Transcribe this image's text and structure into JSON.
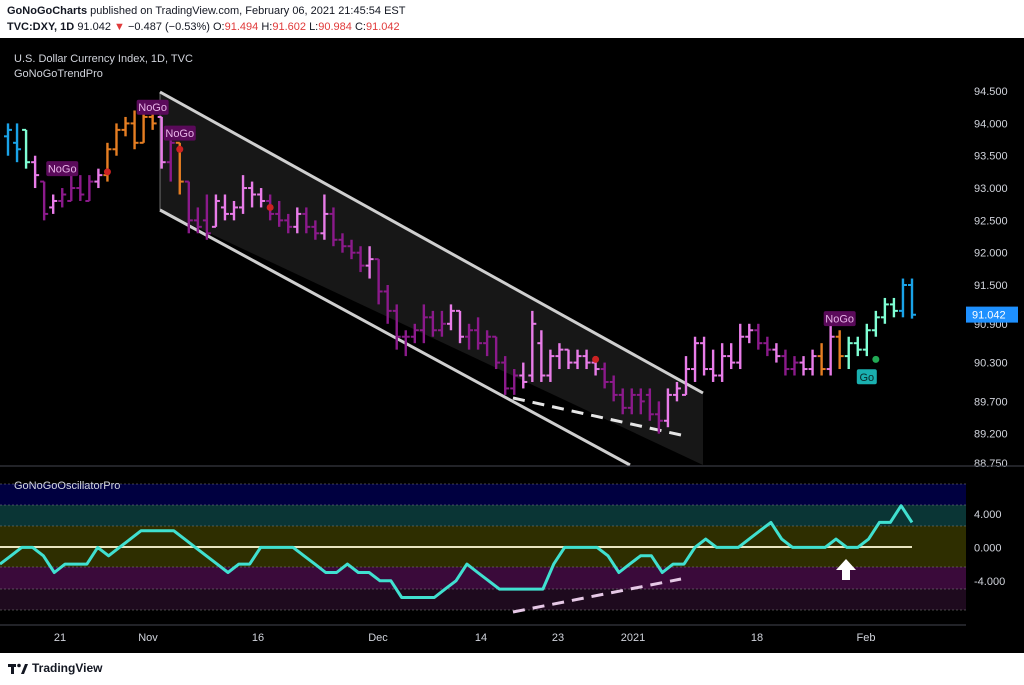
{
  "header": {
    "author": "GoNoGoCharts",
    "published_text": "published on TradingView.com, February 06, 2021 21:45:54 EST",
    "symbol": "TVC:DXY, 1D",
    "last": "91.042",
    "change_arrow": "▼",
    "change": "−0.487 (−0.53%)",
    "o_label": "O:",
    "o_value": "91.494",
    "h_label": "H:",
    "h_value": "91.602",
    "l_label": "L:",
    "l_value": "90.984",
    "c_label": "C:",
    "c_value": "91.042"
  },
  "footer": {
    "logo_text": "TradingView"
  },
  "colors": {
    "background": "#000000",
    "nogo_strong": "#8b1a8b",
    "nogo_weak": "#e87ce8",
    "neutral": "#e67e22",
    "go_weak": "#7fffd4",
    "go_strong": "#1aa3e8",
    "oscillator": "#40e0d0",
    "price_label_bg": "#1e90ff",
    "label_nogo_bg": "#5a0a5a",
    "label_go_bg": "#1ab0b0"
  },
  "chart_data": [
    {
      "type": "ohlc",
      "title": "U.S. Dollar Currency Index, 1D, TVC",
      "indicator": "GoNoGoTrendPro",
      "y_ticks": [
        "94.500",
        "94.000",
        "93.500",
        "93.000",
        "92.500",
        "92.000",
        "91.500",
        "90.900",
        "90.300",
        "89.700",
        "89.200",
        "88.750"
      ],
      "ylim": [
        88.7,
        94.95
      ],
      "x_ticks": [
        "21",
        "Nov",
        "16",
        "Dec",
        "14",
        "23",
        "2021",
        "18",
        "Feb"
      ],
      "last_price_label": "91.042",
      "bars": [
        {
          "o": 93.8,
          "h": 94.0,
          "l": 93.5,
          "c": 93.9,
          "color": "go_strong"
        },
        {
          "o": 93.7,
          "h": 94.0,
          "l": 93.4,
          "c": 93.6,
          "color": "go_strong"
        },
        {
          "o": 93.9,
          "h": 93.9,
          "l": 93.3,
          "c": 93.4,
          "color": "go_weak"
        },
        {
          "o": 93.4,
          "h": 93.5,
          "l": 93.0,
          "c": 93.2,
          "color": "nogo_weak"
        },
        {
          "o": 93.1,
          "h": 93.1,
          "l": 92.5,
          "c": 92.6,
          "color": "nogo_strong"
        },
        {
          "o": 92.7,
          "h": 92.9,
          "l": 92.6,
          "c": 92.8,
          "color": "nogo_weak"
        },
        {
          "o": 92.8,
          "h": 93.0,
          "l": 92.7,
          "c": 92.9,
          "color": "nogo_strong"
        },
        {
          "o": 92.8,
          "h": 93.2,
          "l": 92.8,
          "c": 93.0,
          "color": "nogo_strong"
        },
        {
          "o": 93.0,
          "h": 93.2,
          "l": 92.8,
          "c": 92.9,
          "color": "nogo_strong"
        },
        {
          "o": 92.8,
          "h": 93.2,
          "l": 92.8,
          "c": 93.1,
          "color": "nogo_strong"
        },
        {
          "o": 93.1,
          "h": 93.3,
          "l": 93.0,
          "c": 93.2,
          "color": "nogo_weak"
        },
        {
          "o": 93.2,
          "h": 93.7,
          "l": 93.1,
          "c": 93.6,
          "color": "neutral"
        },
        {
          "o": 93.6,
          "h": 94.0,
          "l": 93.5,
          "c": 93.9,
          "color": "neutral"
        },
        {
          "o": 93.9,
          "h": 94.1,
          "l": 93.8,
          "c": 94.0,
          "color": "neutral"
        },
        {
          "o": 94.0,
          "h": 94.2,
          "l": 93.6,
          "c": 93.7,
          "color": "neutral"
        },
        {
          "o": 93.7,
          "h": 94.3,
          "l": 93.7,
          "c": 94.1,
          "color": "neutral"
        },
        {
          "o": 94.1,
          "h": 94.3,
          "l": 93.9,
          "c": 94.0,
          "color": "neutral"
        },
        {
          "o": 94.1,
          "h": 94.1,
          "l": 93.3,
          "c": 93.4,
          "color": "nogo_weak"
        },
        {
          "o": 93.4,
          "h": 93.8,
          "l": 93.1,
          "c": 93.7,
          "color": "nogo_strong"
        },
        {
          "o": 93.7,
          "h": 93.7,
          "l": 92.9,
          "c": 93.1,
          "color": "neutral"
        },
        {
          "o": 93.1,
          "h": 93.1,
          "l": 92.3,
          "c": 92.5,
          "color": "nogo_strong"
        },
        {
          "o": 92.5,
          "h": 92.7,
          "l": 92.3,
          "c": 92.4,
          "color": "nogo_strong"
        },
        {
          "o": 92.5,
          "h": 92.9,
          "l": 92.2,
          "c": 92.3,
          "color": "nogo_strong"
        },
        {
          "o": 92.4,
          "h": 92.9,
          "l": 92.4,
          "c": 92.8,
          "color": "nogo_weak"
        },
        {
          "o": 92.7,
          "h": 92.9,
          "l": 92.5,
          "c": 92.6,
          "color": "nogo_weak"
        },
        {
          "o": 92.6,
          "h": 92.8,
          "l": 92.5,
          "c": 92.7,
          "color": "nogo_weak"
        },
        {
          "o": 92.7,
          "h": 93.2,
          "l": 92.6,
          "c": 93.0,
          "color": "nogo_weak"
        },
        {
          "o": 93.0,
          "h": 93.1,
          "l": 92.7,
          "c": 92.9,
          "color": "nogo_weak"
        },
        {
          "o": 92.9,
          "h": 93.0,
          "l": 92.7,
          "c": 92.8,
          "color": "nogo_weak"
        },
        {
          "o": 92.8,
          "h": 92.9,
          "l": 92.5,
          "c": 92.6,
          "color": "nogo_strong"
        },
        {
          "o": 92.6,
          "h": 92.8,
          "l": 92.4,
          "c": 92.5,
          "color": "nogo_strong"
        },
        {
          "o": 92.5,
          "h": 92.6,
          "l": 92.3,
          "c": 92.4,
          "color": "nogo_strong"
        },
        {
          "o": 92.4,
          "h": 92.7,
          "l": 92.3,
          "c": 92.6,
          "color": "nogo_weak"
        },
        {
          "o": 92.6,
          "h": 92.7,
          "l": 92.3,
          "c": 92.4,
          "color": "nogo_strong"
        },
        {
          "o": 92.4,
          "h": 92.5,
          "l": 92.2,
          "c": 92.3,
          "color": "nogo_strong"
        },
        {
          "o": 92.3,
          "h": 92.9,
          "l": 92.2,
          "c": 92.6,
          "color": "nogo_weak"
        },
        {
          "o": 92.6,
          "h": 92.7,
          "l": 92.1,
          "c": 92.2,
          "color": "nogo_strong"
        },
        {
          "o": 92.2,
          "h": 92.3,
          "l": 92.0,
          "c": 92.1,
          "color": "nogo_strong"
        },
        {
          "o": 92.1,
          "h": 92.2,
          "l": 91.9,
          "c": 92.0,
          "color": "nogo_strong"
        },
        {
          "o": 92.0,
          "h": 92.1,
          "l": 91.7,
          "c": 91.8,
          "color": "nogo_strong"
        },
        {
          "o": 91.8,
          "h": 92.1,
          "l": 91.6,
          "c": 91.9,
          "color": "nogo_weak"
        },
        {
          "o": 91.9,
          "h": 91.9,
          "l": 91.2,
          "c": 91.4,
          "color": "nogo_strong"
        },
        {
          "o": 91.4,
          "h": 91.5,
          "l": 90.9,
          "c": 91.1,
          "color": "nogo_strong"
        },
        {
          "o": 91.1,
          "h": 91.2,
          "l": 90.5,
          "c": 90.7,
          "color": "nogo_strong"
        },
        {
          "o": 90.7,
          "h": 90.8,
          "l": 90.4,
          "c": 90.7,
          "color": "nogo_strong"
        },
        {
          "o": 90.7,
          "h": 90.9,
          "l": 90.6,
          "c": 90.8,
          "color": "nogo_strong"
        },
        {
          "o": 90.8,
          "h": 91.2,
          "l": 90.6,
          "c": 91.0,
          "color": "nogo_strong"
        },
        {
          "o": 91.0,
          "h": 91.1,
          "l": 90.7,
          "c": 90.8,
          "color": "nogo_strong"
        },
        {
          "o": 90.8,
          "h": 91.1,
          "l": 90.7,
          "c": 90.9,
          "color": "nogo_strong"
        },
        {
          "o": 90.9,
          "h": 91.2,
          "l": 90.8,
          "c": 91.1,
          "color": "nogo_weak"
        },
        {
          "o": 91.1,
          "h": 91.1,
          "l": 90.6,
          "c": 90.7,
          "color": "nogo_weak"
        },
        {
          "o": 90.7,
          "h": 90.9,
          "l": 90.5,
          "c": 90.8,
          "color": "nogo_strong"
        },
        {
          "o": 90.8,
          "h": 91.0,
          "l": 90.5,
          "c": 90.6,
          "color": "nogo_strong"
        },
        {
          "o": 90.6,
          "h": 90.8,
          "l": 90.4,
          "c": 90.7,
          "color": "nogo_strong"
        },
        {
          "o": 90.7,
          "h": 90.7,
          "l": 90.2,
          "c": 90.3,
          "color": "nogo_strong"
        },
        {
          "o": 90.3,
          "h": 90.4,
          "l": 89.8,
          "c": 89.9,
          "color": "nogo_strong"
        },
        {
          "o": 89.9,
          "h": 90.2,
          "l": 89.8,
          "c": 90.1,
          "color": "nogo_strong"
        },
        {
          "o": 90.1,
          "h": 90.3,
          "l": 89.9,
          "c": 90.0,
          "color": "nogo_weak"
        },
        {
          "o": 90.1,
          "h": 91.1,
          "l": 90.0,
          "c": 90.9,
          "color": "nogo_weak"
        },
        {
          "o": 90.6,
          "h": 90.8,
          "l": 90.0,
          "c": 90.1,
          "color": "nogo_weak"
        },
        {
          "o": 90.1,
          "h": 90.5,
          "l": 90.0,
          "c": 90.4,
          "color": "nogo_weak"
        },
        {
          "o": 90.4,
          "h": 90.6,
          "l": 90.2,
          "c": 90.5,
          "color": "nogo_weak"
        },
        {
          "o": 90.5,
          "h": 90.5,
          "l": 90.2,
          "c": 90.3,
          "color": "nogo_weak"
        },
        {
          "o": 90.3,
          "h": 90.5,
          "l": 90.2,
          "c": 90.4,
          "color": "nogo_weak"
        },
        {
          "o": 90.4,
          "h": 90.5,
          "l": 90.2,
          "c": 90.3,
          "color": "nogo_weak"
        },
        {
          "o": 90.3,
          "h": 90.4,
          "l": 90.1,
          "c": 90.2,
          "color": "nogo_weak"
        },
        {
          "o": 90.2,
          "h": 90.3,
          "l": 89.9,
          "c": 90.0,
          "color": "nogo_strong"
        },
        {
          "o": 90.0,
          "h": 90.1,
          "l": 89.7,
          "c": 89.8,
          "color": "nogo_strong"
        },
        {
          "o": 89.8,
          "h": 89.9,
          "l": 89.5,
          "c": 89.6,
          "color": "nogo_strong"
        },
        {
          "o": 89.6,
          "h": 89.9,
          "l": 89.5,
          "c": 89.8,
          "color": "nogo_strong"
        },
        {
          "o": 89.8,
          "h": 89.9,
          "l": 89.5,
          "c": 89.7,
          "color": "nogo_strong"
        },
        {
          "o": 89.8,
          "h": 89.9,
          "l": 89.4,
          "c": 89.5,
          "color": "nogo_strong"
        },
        {
          "o": 89.5,
          "h": 89.7,
          "l": 89.2,
          "c": 89.4,
          "color": "nogo_strong"
        },
        {
          "o": 89.4,
          "h": 89.9,
          "l": 89.3,
          "c": 89.8,
          "color": "nogo_weak"
        },
        {
          "o": 89.8,
          "h": 90.0,
          "l": 89.7,
          "c": 89.9,
          "color": "nogo_weak"
        },
        {
          "o": 89.8,
          "h": 90.4,
          "l": 89.8,
          "c": 90.2,
          "color": "nogo_weak"
        },
        {
          "o": 90.2,
          "h": 90.7,
          "l": 90.0,
          "c": 90.6,
          "color": "nogo_weak"
        },
        {
          "o": 90.6,
          "h": 90.7,
          "l": 90.1,
          "c": 90.2,
          "color": "nogo_weak"
        },
        {
          "o": 90.2,
          "h": 90.5,
          "l": 90.0,
          "c": 90.1,
          "color": "nogo_weak"
        },
        {
          "o": 90.1,
          "h": 90.6,
          "l": 90.0,
          "c": 90.4,
          "color": "nogo_weak"
        },
        {
          "o": 90.4,
          "h": 90.6,
          "l": 90.2,
          "c": 90.3,
          "color": "nogo_weak"
        },
        {
          "o": 90.3,
          "h": 90.9,
          "l": 90.2,
          "c": 90.7,
          "color": "nogo_weak"
        },
        {
          "o": 90.7,
          "h": 90.9,
          "l": 90.6,
          "c": 90.8,
          "color": "nogo_weak"
        },
        {
          "o": 90.8,
          "h": 90.9,
          "l": 90.5,
          "c": 90.6,
          "color": "nogo_strong"
        },
        {
          "o": 90.6,
          "h": 90.7,
          "l": 90.4,
          "c": 90.5,
          "color": "nogo_strong"
        },
        {
          "o": 90.5,
          "h": 90.6,
          "l": 90.3,
          "c": 90.4,
          "color": "nogo_weak"
        },
        {
          "o": 90.4,
          "h": 90.5,
          "l": 90.1,
          "c": 90.2,
          "color": "nogo_strong"
        },
        {
          "o": 90.2,
          "h": 90.4,
          "l": 90.1,
          "c": 90.3,
          "color": "nogo_strong"
        },
        {
          "o": 90.3,
          "h": 90.4,
          "l": 90.1,
          "c": 90.2,
          "color": "nogo_weak"
        },
        {
          "o": 90.2,
          "h": 90.5,
          "l": 90.1,
          "c": 90.4,
          "color": "nogo_weak"
        },
        {
          "o": 90.4,
          "h": 90.6,
          "l": 90.1,
          "c": 90.2,
          "color": "neutral"
        },
        {
          "o": 90.2,
          "h": 90.9,
          "l": 90.1,
          "c": 90.7,
          "color": "nogo_weak"
        },
        {
          "o": 90.7,
          "h": 90.8,
          "l": 90.2,
          "c": 90.4,
          "color": "neutral"
        },
        {
          "o": 90.4,
          "h": 90.7,
          "l": 90.2,
          "c": 90.6,
          "color": "go_weak"
        },
        {
          "o": 90.6,
          "h": 90.7,
          "l": 90.4,
          "c": 90.5,
          "color": "go_weak"
        },
        {
          "o": 90.5,
          "h": 90.9,
          "l": 90.4,
          "c": 90.8,
          "color": "go_weak"
        },
        {
          "o": 90.8,
          "h": 91.1,
          "l": 90.7,
          "c": 91.0,
          "color": "go_weak"
        },
        {
          "o": 91.0,
          "h": 91.3,
          "l": 90.9,
          "c": 91.2,
          "color": "go_weak"
        },
        {
          "o": 91.2,
          "h": 91.3,
          "l": 91.0,
          "c": 91.1,
          "color": "go_weak"
        },
        {
          "o": 91.1,
          "h": 91.6,
          "l": 91.0,
          "c": 91.5,
          "color": "go_strong"
        },
        {
          "o": 91.5,
          "h": 91.6,
          "l": 90.98,
          "c": 91.04,
          "color": "go_strong"
        }
      ],
      "labels": [
        {
          "text": "NoGo",
          "type": "nogo"
        },
        {
          "text": "NoGo",
          "type": "nogo"
        },
        {
          "text": "NoGo",
          "type": "nogo"
        },
        {
          "text": "NoGo",
          "type": "nogo"
        },
        {
          "text": "Go",
          "type": "go"
        }
      ]
    },
    {
      "type": "line",
      "title": "GoNoGoOscillatorPro",
      "y_ticks": [
        "4.000",
        "0.000",
        "-4.000"
      ],
      "ylim": [
        -7.5,
        7.6
      ],
      "series": [
        {
          "values": [
            -2,
            -1,
            0,
            0,
            -1,
            -3,
            -2,
            -2,
            -2,
            0,
            -1,
            0,
            1,
            2,
            2,
            2,
            2,
            1,
            0,
            -1,
            -2,
            -3,
            -2,
            -2,
            0,
            0,
            0,
            0,
            -1,
            -2,
            -3,
            -3,
            -2,
            -3,
            -3,
            -4,
            -4,
            -6,
            -6,
            -6,
            -6,
            -5,
            -4,
            -2,
            -3,
            -4,
            -5,
            -5,
            -5,
            -5,
            -5,
            -2,
            0,
            0,
            0,
            0,
            -1,
            -3,
            -2,
            -1,
            -1,
            -3,
            -2,
            -2,
            0,
            1,
            0,
            0,
            0,
            1,
            2,
            3,
            1,
            0,
            0,
            0,
            0,
            1,
            0,
            0,
            1,
            3,
            3,
            5,
            3
          ]
        }
      ]
    }
  ]
}
